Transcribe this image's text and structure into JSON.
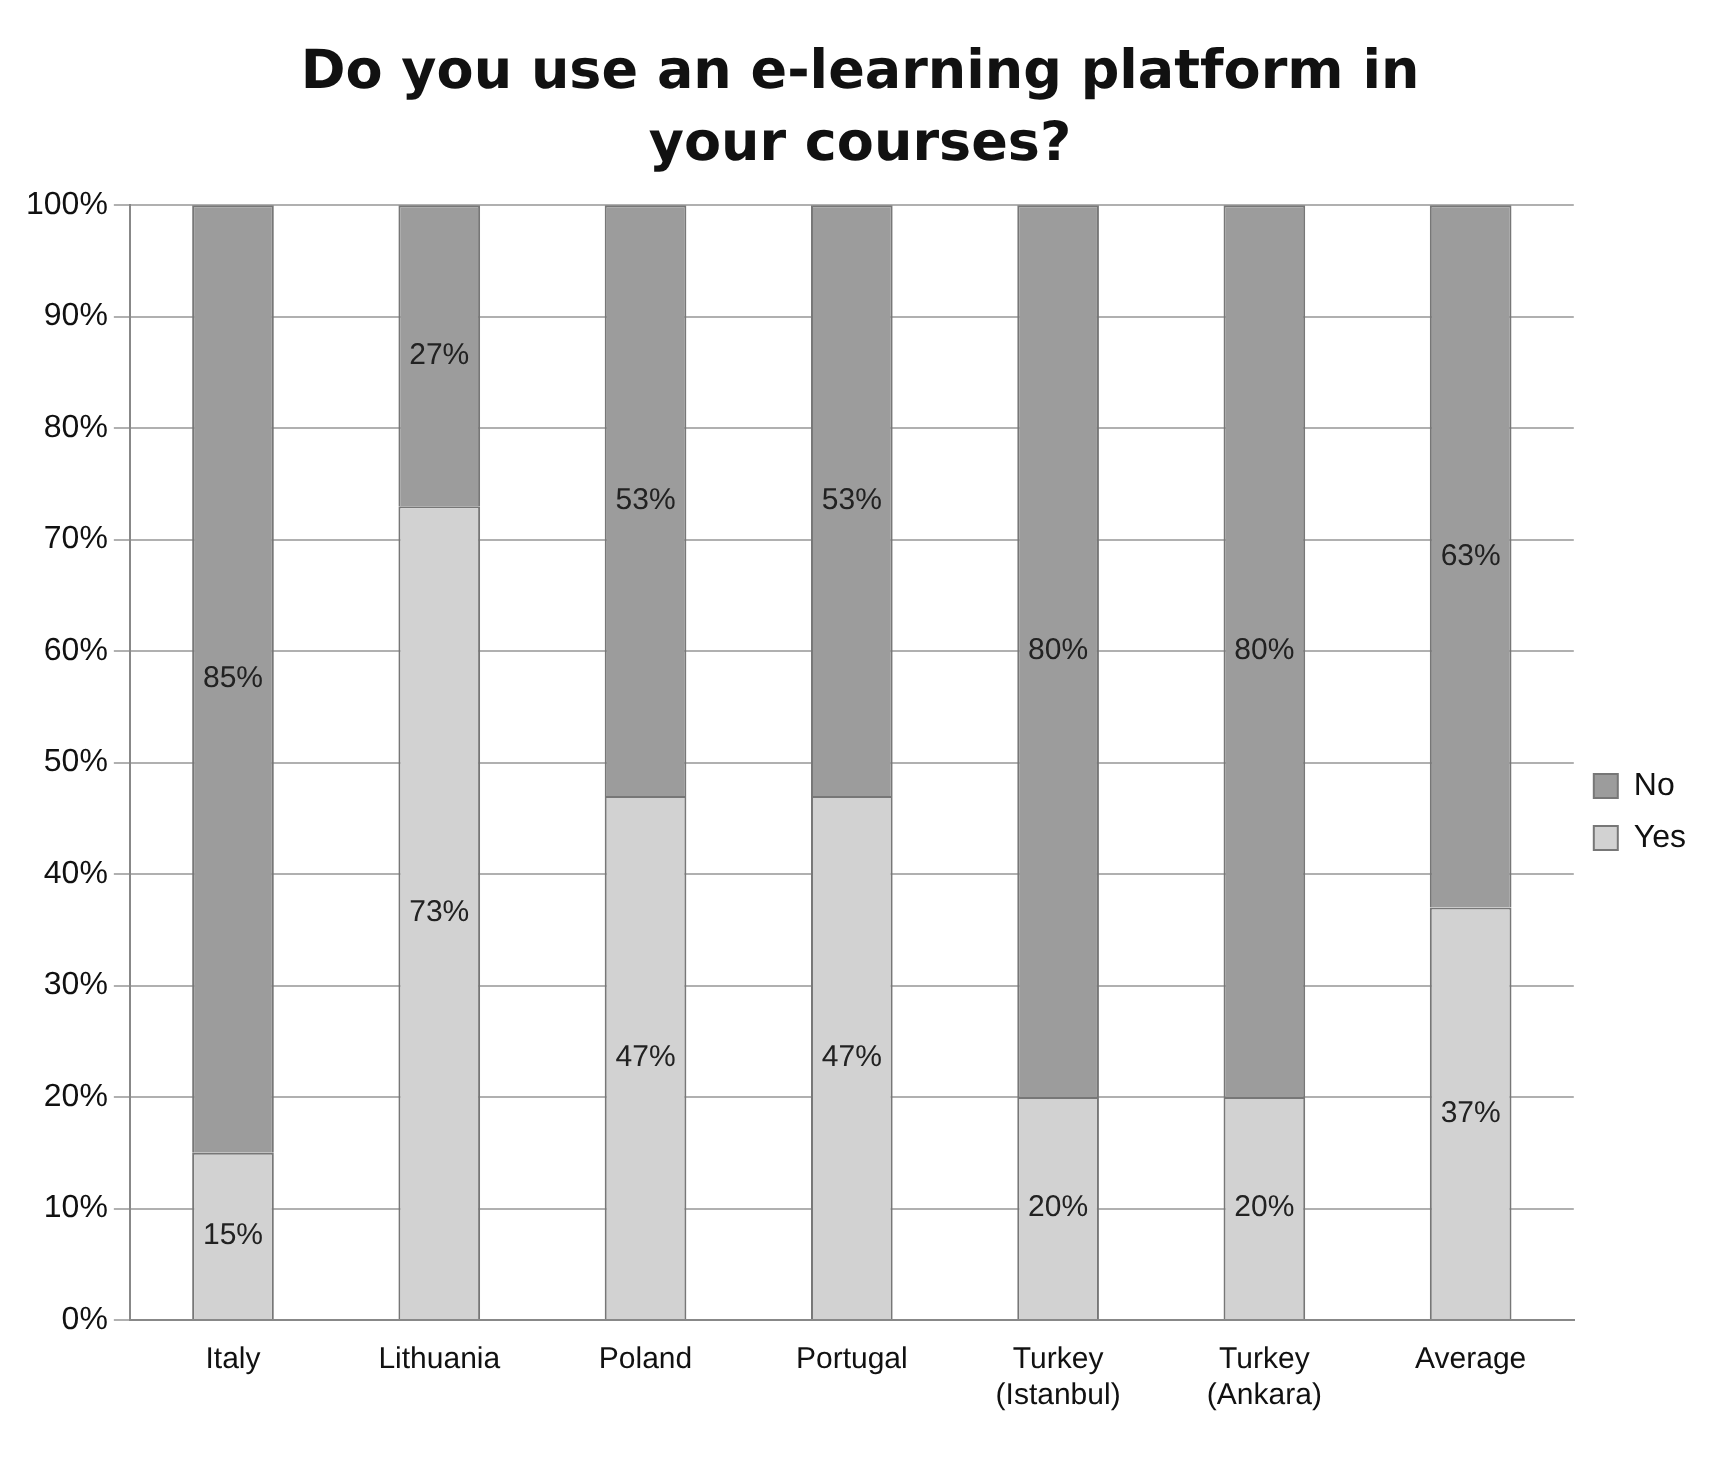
{
  "chart_data": {
    "type": "bar",
    "stacked": true,
    "title": "Do you use an e-learning platform in your courses?",
    "categories": [
      "Italy",
      "Lithuania",
      "Poland",
      "Portugal",
      "Turkey\n(Istanbul)",
      "Turkey\n(Ankara)",
      "Average"
    ],
    "series": [
      {
        "name": "Yes",
        "color": "#d2d2d2",
        "values": [
          15,
          73,
          47,
          47,
          20,
          20,
          37
        ],
        "value_labels": [
          "15%",
          "73%",
          "47%",
          "47%",
          "20%",
          "20%",
          "37%"
        ]
      },
      {
        "name": "No",
        "color": "#9c9c9c",
        "values": [
          85,
          27,
          53,
          53,
          80,
          80,
          63
        ],
        "value_labels": [
          "85%",
          "27%",
          "53%",
          "53%",
          "80%",
          "80%",
          "63%"
        ]
      }
    ],
    "ylim": [
      0,
      100
    ],
    "yticks": [
      {
        "value": 0,
        "label": "0%"
      },
      {
        "value": 10,
        "label": "10%"
      },
      {
        "value": 20,
        "label": "20%"
      },
      {
        "value": 30,
        "label": "30%"
      },
      {
        "value": 40,
        "label": "40%"
      },
      {
        "value": 50,
        "label": "50%"
      },
      {
        "value": 60,
        "label": "60%"
      },
      {
        "value": 70,
        "label": "70%"
      },
      {
        "value": 80,
        "label": "80%"
      },
      {
        "value": 90,
        "label": "90%"
      },
      {
        "value": 100,
        "label": "100%"
      }
    ],
    "grid": "y",
    "legend": "right"
  }
}
